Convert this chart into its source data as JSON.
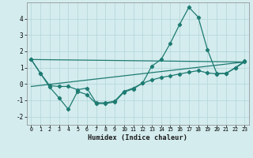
{
  "xlabel": "Humidex (Indice chaleur)",
  "background_color": "#d4ecee",
  "grid_color": "#b8d8dc",
  "line_color": "#1e7b72",
  "xlim": [
    -0.5,
    23.5
  ],
  "ylim": [
    -2.5,
    5.0
  ],
  "xticks": [
    0,
    1,
    2,
    3,
    4,
    5,
    6,
    7,
    8,
    9,
    10,
    11,
    12,
    13,
    14,
    15,
    16,
    17,
    18,
    19,
    20,
    21,
    22,
    23
  ],
  "yticks": [
    -2,
    -1,
    0,
    1,
    2,
    3,
    4
  ],
  "series1_x": [
    0,
    1,
    2,
    3,
    4,
    5,
    6,
    7,
    8,
    9,
    10,
    11,
    12,
    13,
    14,
    15,
    16,
    17,
    18,
    19,
    20,
    21,
    22,
    23
  ],
  "series1_y": [
    1.5,
    0.65,
    -0.2,
    -0.85,
    -1.55,
    -0.45,
    -0.65,
    -1.2,
    -1.2,
    -1.1,
    -0.5,
    -0.3,
    0.05,
    1.1,
    1.5,
    2.5,
    3.65,
    4.7,
    4.1,
    2.1,
    0.65,
    0.65,
    1.0,
    1.4
  ],
  "series2_x": [
    0,
    1,
    2,
    3,
    4,
    5,
    6,
    7,
    8,
    9,
    10,
    11,
    12,
    13,
    14,
    15,
    16,
    17,
    18,
    19,
    20,
    21,
    22,
    23
  ],
  "series2_y": [
    1.5,
    0.65,
    -0.1,
    -0.15,
    -0.15,
    -0.35,
    -0.25,
    -1.15,
    -1.15,
    -1.05,
    -0.45,
    -0.25,
    0.05,
    0.25,
    0.4,
    0.5,
    0.62,
    0.72,
    0.82,
    0.68,
    0.62,
    0.65,
    0.98,
    1.35
  ],
  "series3_x": [
    0,
    23
  ],
  "series3_y": [
    -0.15,
    1.35
  ],
  "series4_x": [
    0,
    23
  ],
  "series4_y": [
    1.5,
    1.35
  ]
}
